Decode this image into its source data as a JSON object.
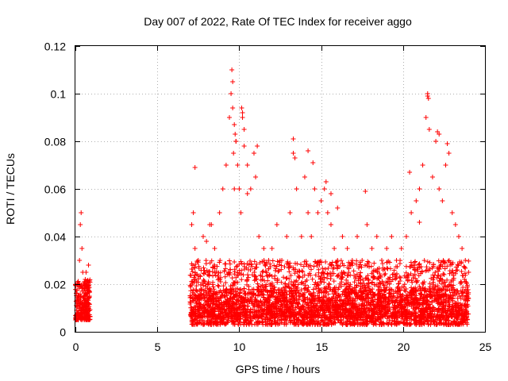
{
  "chart_data": {
    "type": "scatter",
    "title": "Day 007 of 2022, Rate Of TEC Index for receiver aggo",
    "xlabel": "GPS time / hours",
    "ylabel": "ROTI / TECUs",
    "xlim": [
      0,
      25
    ],
    "ylim": [
      0,
      0.12
    ],
    "x_ticks": [
      "0",
      "5",
      "10",
      "15",
      "20",
      "25"
    ],
    "y_ticks": [
      "0",
      "0.02",
      "0.04",
      "0.06",
      "0.08",
      "0.1",
      "0.12"
    ],
    "grid": true,
    "marker": "+",
    "color": "#ff0000",
    "series": [
      {
        "x": [
          0.05,
          0.1,
          0.15,
          0.2,
          0.25,
          0.3,
          0.35,
          0.4,
          0.45,
          0.5,
          0.55,
          0.6,
          0.65,
          0.7,
          0.75,
          0.8,
          0.85,
          0.1,
          0.2,
          0.3,
          0.35,
          0.4,
          0.45,
          0.5,
          0.55,
          0.6,
          0.7,
          0.8,
          7.1,
          7.2,
          7.3,
          7.5,
          7.8,
          8.0,
          8.2,
          8.5,
          8.8,
          9.0,
          9.2,
          9.4,
          9.5,
          9.55,
          9.6,
          9.65,
          9.7,
          9.8,
          9.9,
          10.0,
          10.1,
          10.2,
          10.3,
          10.5,
          10.7,
          10.9,
          11.0,
          11.2,
          11.5,
          11.8,
          12.0,
          12.3,
          12.6,
          12.9,
          13.1,
          13.3,
          13.5,
          13.8,
          14.0,
          14.2,
          14.4,
          14.6,
          14.8,
          15.0,
          15.2,
          15.4,
          15.6,
          15.8,
          16.0,
          16.3,
          16.6,
          16.9,
          17.2,
          17.5,
          17.8,
          18.1,
          18.4,
          18.7,
          19.0,
          19.3,
          19.6,
          19.9,
          20.2,
          20.5,
          20.8,
          21.0,
          21.2,
          21.4,
          21.5,
          21.6,
          21.8,
          22.0,
          22.2,
          22.4,
          22.6,
          22.8,
          23.0,
          23.2,
          23.4,
          23.6,
          23.8,
          24.0,
          7.3,
          8.3,
          9.6,
          9.7,
          9.75,
          9.8,
          10.15,
          10.2,
          10.3,
          10.5,
          11.1,
          13.3,
          13.4,
          14.2,
          14.5,
          15.3,
          15.6,
          16.0,
          17.7,
          21.5,
          21.55,
          22.1,
          22.2,
          22.7,
          20.4,
          21.0
        ],
        "y": [
          0.011,
          0.012,
          0.015,
          0.02,
          0.03,
          0.045,
          0.05,
          0.035,
          0.025,
          0.02,
          0.018,
          0.022,
          0.025,
          0.02,
          0.018,
          0.028,
          0.015,
          0.008,
          0.007,
          0.01,
          0.012,
          0.009,
          0.008,
          0.011,
          0.013,
          0.01,
          0.009,
          0.012,
          0.045,
          0.05,
          0.035,
          0.03,
          0.04,
          0.038,
          0.045,
          0.035,
          0.05,
          0.06,
          0.07,
          0.09,
          0.1,
          0.11,
          0.105,
          0.075,
          0.06,
          0.08,
          0.07,
          0.06,
          0.05,
          0.09,
          0.085,
          0.07,
          0.06,
          0.075,
          0.065,
          0.04,
          0.035,
          0.03,
          0.035,
          0.045,
          0.03,
          0.04,
          0.05,
          0.075,
          0.06,
          0.04,
          0.065,
          0.05,
          0.04,
          0.06,
          0.05,
          0.055,
          0.06,
          0.05,
          0.045,
          0.035,
          0.03,
          0.04,
          0.035,
          0.03,
          0.04,
          0.03,
          0.045,
          0.035,
          0.04,
          0.03,
          0.035,
          0.04,
          0.03,
          0.035,
          0.04,
          0.05,
          0.055,
          0.06,
          0.07,
          0.09,
          0.1,
          0.085,
          0.065,
          0.08,
          0.06,
          0.055,
          0.07,
          0.075,
          0.05,
          0.045,
          0.04,
          0.035,
          0.03,
          0.025,
          0.069,
          0.045,
          0.094,
          0.087,
          0.083,
          0.08,
          0.094,
          0.092,
          0.078,
          0.058,
          0.078,
          0.081,
          0.073,
          0.076,
          0.071,
          0.063,
          0.058,
          0.052,
          0.059,
          0.099,
          0.098,
          0.084,
          0.083,
          0.079,
          0.067,
          0.046
        ]
      }
    ],
    "bands": [
      {
        "x0": 0.0,
        "x1": 0.9,
        "y0": 0.005,
        "y1": 0.022,
        "n": 240
      },
      {
        "x0": 7.0,
        "x1": 24.0,
        "y0": 0.003,
        "y1": 0.03,
        "n": 2400
      },
      {
        "x0": 7.0,
        "x1": 24.0,
        "y0": 0.006,
        "y1": 0.018,
        "n": 1400
      }
    ]
  }
}
